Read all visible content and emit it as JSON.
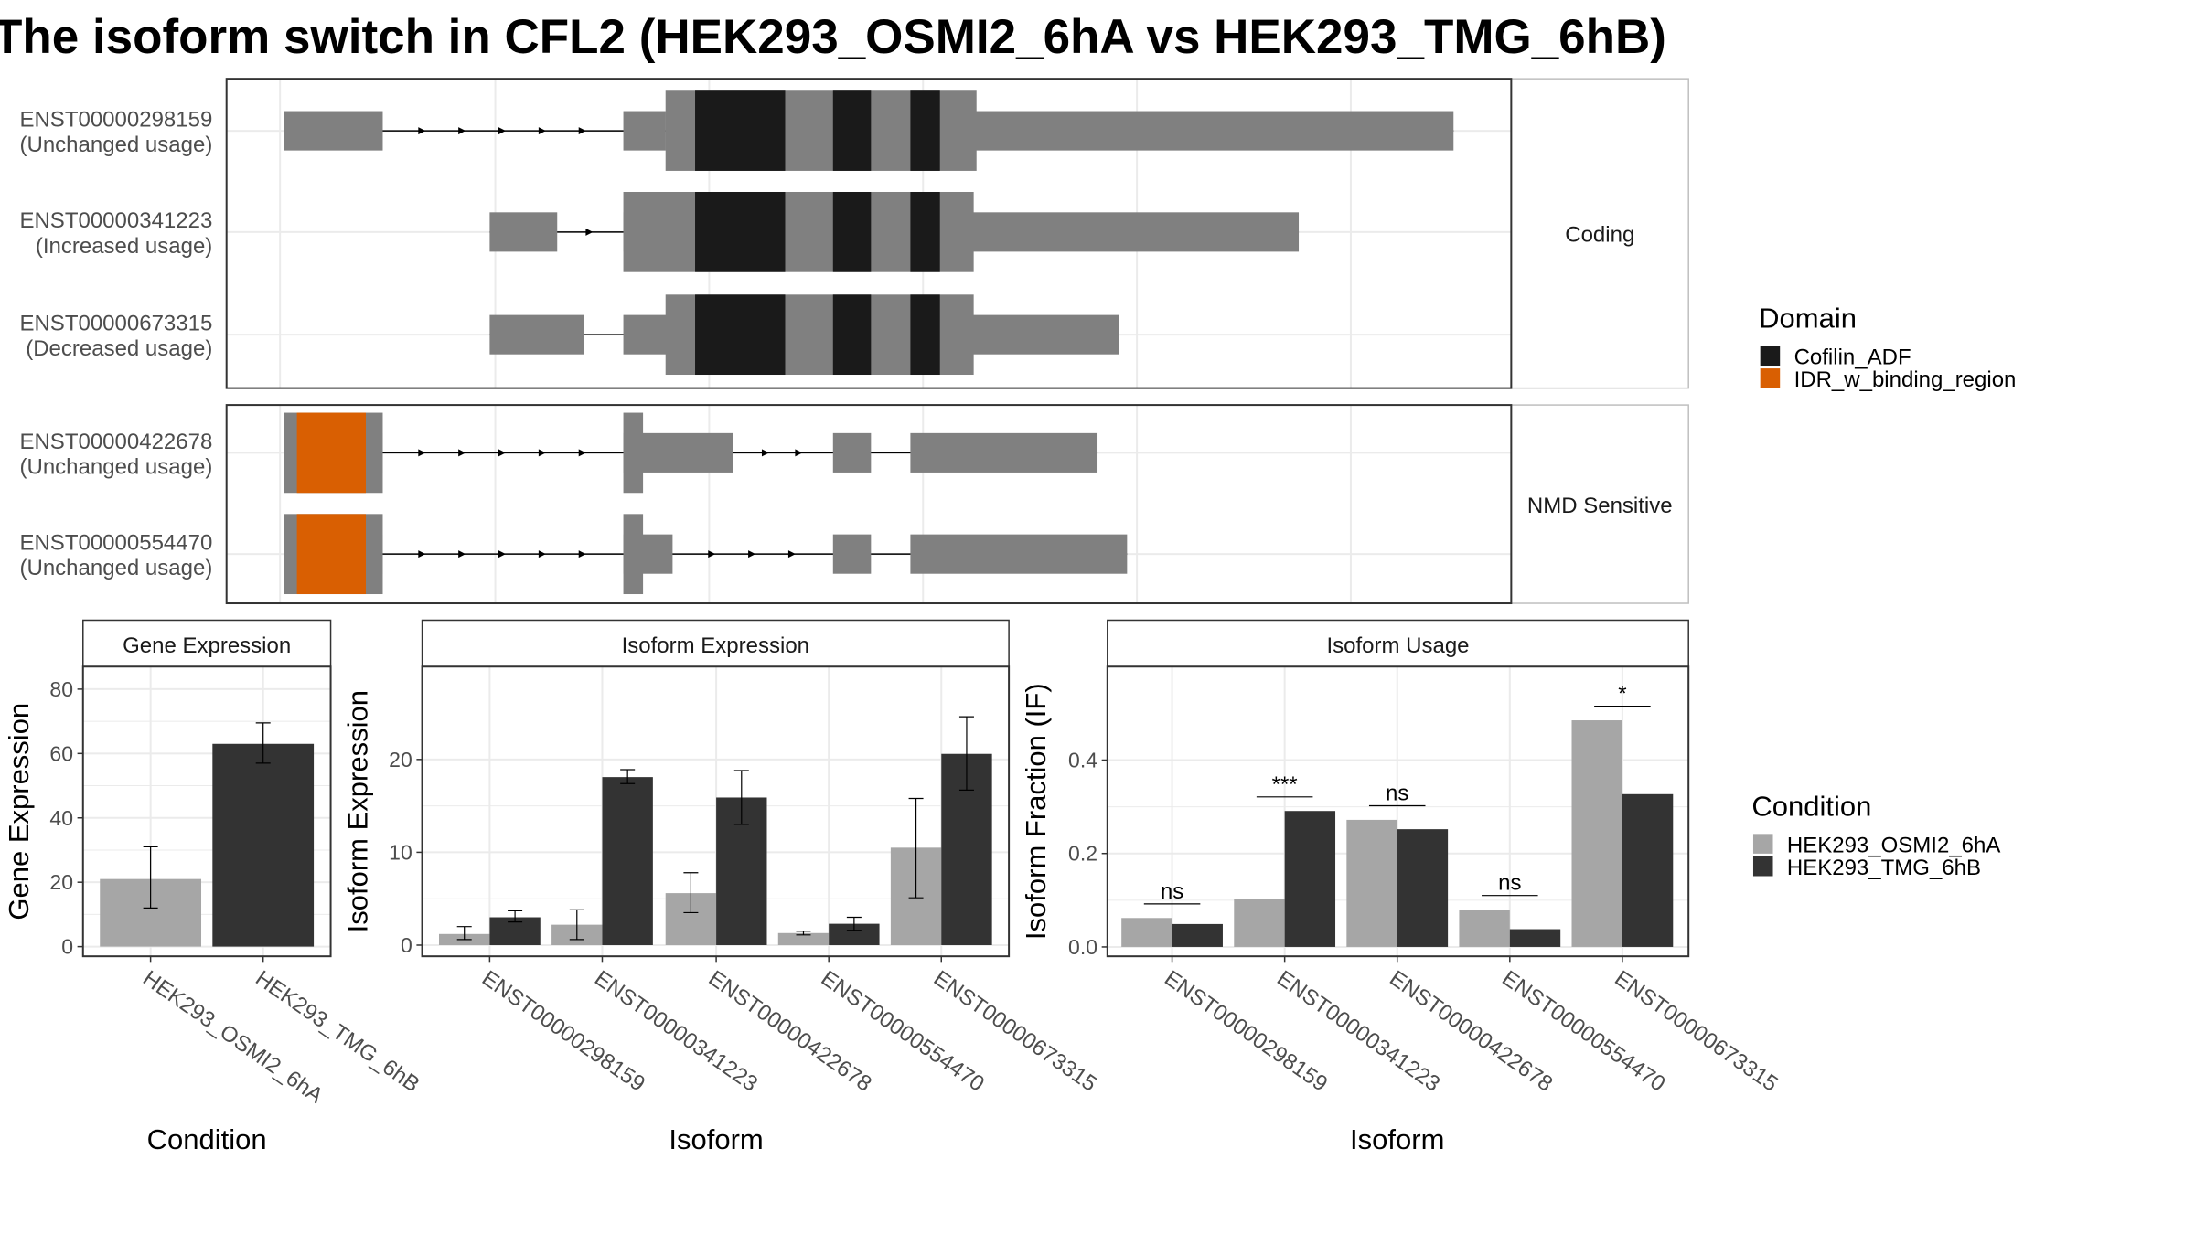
{
  "title": "The isoform switch in CFL2 (HEK293_OSMI2_6hA vs HEK293_TMG_6hB)",
  "colors": {
    "domain_cofilin": "#1a1a1a",
    "domain_idr": "#d95f02",
    "exon": "#808080",
    "cond_a": "#a6a6a6",
    "cond_b": "#333333",
    "grid": "#ebebeb",
    "panel_border": "#333333"
  },
  "transcript_panel": {
    "groups": [
      {
        "label": "Coding",
        "transcripts": [
          {
            "id": "ENST00000298159",
            "usage": "(Unchanged usage)",
            "exons": [
              [
                202,
                272
              ],
              [
                443,
                473
              ],
              [
                473,
                1033
              ]
            ],
            "cds": [
              [
                473,
                694
              ]
            ],
            "domains": [
              {
                "type": "cofilin",
                "from": 494,
                "to": 558
              },
              {
                "type": "cofilin",
                "from": 592,
                "to": 619
              },
              {
                "type": "cofilin",
                "from": 647,
                "to": 668
              }
            ],
            "arrows": true
          },
          {
            "id": "ENST00000341223",
            "usage": "(Increased usage)",
            "exons": [
              [
                348,
                396
              ],
              [
                443,
                923
              ]
            ],
            "cds": [
              [
                443,
                692
              ]
            ],
            "domains": [
              {
                "type": "cofilin",
                "from": 494,
                "to": 558
              },
              {
                "type": "cofilin",
                "from": 592,
                "to": 619
              },
              {
                "type": "cofilin",
                "from": 647,
                "to": 668
              }
            ],
            "arrows": true
          },
          {
            "id": "ENST00000673315",
            "usage": "(Decreased usage)",
            "exons": [
              [
                348,
                415
              ],
              [
                443,
                795
              ]
            ],
            "cds": [
              [
                473,
                692
              ]
            ],
            "domains": [
              {
                "type": "cofilin",
                "from": 494,
                "to": 558
              },
              {
                "type": "cofilin",
                "from": 592,
                "to": 619
              },
              {
                "type": "cofilin",
                "from": 647,
                "to": 668
              }
            ],
            "arrows": false
          }
        ]
      },
      {
        "label": "NMD Sensitive",
        "transcripts": [
          {
            "id": "ENST00000422678",
            "usage": "(Unchanged usage)",
            "exons": [
              [
                202,
                272
              ],
              [
                443,
                521
              ],
              [
                592,
                619
              ],
              [
                647,
                780
              ]
            ],
            "cds": [
              [
                202,
                272
              ],
              [
                443,
                457
              ]
            ],
            "domains": [
              {
                "type": "idr",
                "from": 211,
                "to": 260
              }
            ],
            "arrows": true
          },
          {
            "id": "ENST00000554470",
            "usage": "(Unchanged usage)",
            "exons": [
              [
                202,
                272
              ],
              [
                443,
                478
              ],
              [
                592,
                619
              ],
              [
                647,
                801
              ]
            ],
            "cds": [
              [
                202,
                272
              ],
              [
                443,
                457
              ]
            ],
            "domains": [
              {
                "type": "idr",
                "from": 211,
                "to": 260
              }
            ],
            "arrows": true
          }
        ]
      }
    ],
    "legend": {
      "title": "Domain",
      "items": [
        {
          "label": "Cofilin_ADF",
          "color_key": "domain_cofilin"
        },
        {
          "label": "IDR_w_binding_region",
          "color_key": "domain_idr"
        }
      ]
    }
  },
  "chart_data": [
    {
      "type": "bar",
      "title": "Gene Expression",
      "xlabel": "Condition",
      "ylabel": "Gene Expression",
      "ylim": [
        -3,
        87
      ],
      "yticks": [
        0,
        20,
        40,
        60,
        80
      ],
      "categories": [
        "HEK293_OSMI2_6hA",
        "HEK293_TMG_6hB"
      ],
      "values": [
        21,
        63
      ],
      "errors": [
        [
          12,
          31
        ],
        [
          57,
          69.5
        ]
      ]
    },
    {
      "type": "bar",
      "title": "Isoform Expression",
      "xlabel": "Isoform",
      "ylabel": "Isoform Expression",
      "ylim": [
        -1.2,
        30
      ],
      "yticks": [
        0,
        10,
        20
      ],
      "categories": [
        "ENST00000298159",
        "ENST00000341223",
        "ENST00000422678",
        "ENST00000554470",
        "ENST00000673315"
      ],
      "series": [
        {
          "name": "HEK293_OSMI2_6hA",
          "values": [
            1.2,
            2.2,
            5.6,
            1.3,
            10.5
          ],
          "errors": [
            [
              0.6,
              2.0
            ],
            [
              0.6,
              3.8
            ],
            [
              3.5,
              7.8
            ],
            [
              1.1,
              1.5
            ],
            [
              5.1,
              15.8
            ]
          ]
        },
        {
          "name": "HEK293_TMG_6hB",
          "values": [
            3.0,
            18.1,
            15.9,
            2.3,
            20.6
          ],
          "errors": [
            [
              2.5,
              3.7
            ],
            [
              17.4,
              18.9
            ],
            [
              13.0,
              18.8
            ],
            [
              1.6,
              3.0
            ],
            [
              16.7,
              24.6
            ]
          ]
        }
      ]
    },
    {
      "type": "bar",
      "title": "Isoform Usage",
      "xlabel": "Isoform",
      "ylabel": "Isoform Fraction (IF)",
      "ylim": [
        -0.02,
        0.6
      ],
      "yticks": [
        0.0,
        0.2,
        0.4
      ],
      "categories": [
        "ENST00000298159",
        "ENST00000341223",
        "ENST00000422678",
        "ENST00000554470",
        "ENST00000673315"
      ],
      "series": [
        {
          "name": "HEK293_OSMI2_6hA",
          "values": [
            0.062,
            0.102,
            0.272,
            0.08,
            0.485
          ]
        },
        {
          "name": "HEK293_TMG_6hB",
          "values": [
            0.049,
            0.291,
            0.252,
            0.038,
            0.327
          ]
        }
      ],
      "significance": [
        "ns",
        "***",
        "ns",
        "ns",
        "*"
      ]
    }
  ],
  "condition_legend": {
    "title": "Condition",
    "items": [
      {
        "label": "HEK293_OSMI2_6hA",
        "color_key": "cond_a"
      },
      {
        "label": "HEK293_TMG_6hB",
        "color_key": "cond_b"
      }
    ]
  }
}
